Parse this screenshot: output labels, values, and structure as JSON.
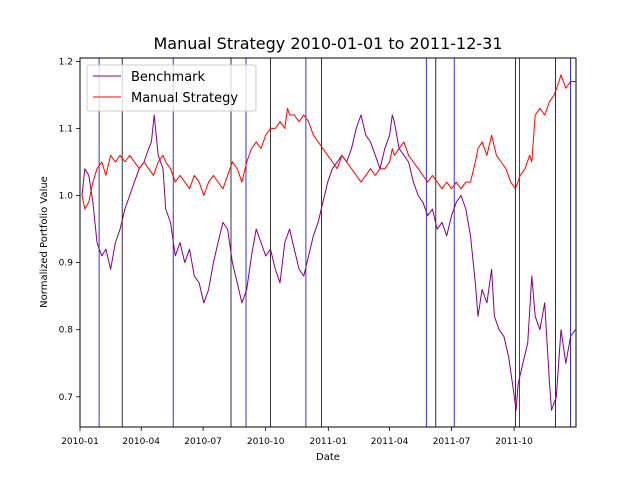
{
  "chart_data": {
    "type": "line",
    "title": "Manual Strategy 2010-01-01 to 2011-12-31",
    "xlabel": "Date",
    "ylabel": "Normalized Portfolio Value",
    "xlim": [
      "2010-01-01",
      "2011-12-31"
    ],
    "ylim": [
      0.655,
      1.205
    ],
    "grid": false,
    "legend_position": "top-left",
    "x_ticks": [
      {
        "date": "2010-01-01",
        "label": "2010-01"
      },
      {
        "date": "2010-04-01",
        "label": "2010-04"
      },
      {
        "date": "2010-07-01",
        "label": "2010-07"
      },
      {
        "date": "2010-10-01",
        "label": "2010-10"
      },
      {
        "date": "2011-01-01",
        "label": "2011-01"
      },
      {
        "date": "2011-04-01",
        "label": "2011-04"
      },
      {
        "date": "2011-07-01",
        "label": "2011-07"
      },
      {
        "date": "2011-10-01",
        "label": "2011-10"
      }
    ],
    "y_ticks": [
      {
        "value": 0.7,
        "label": "0.7"
      },
      {
        "value": 0.8,
        "label": "0.8"
      },
      {
        "value": 0.9,
        "label": "0.9"
      },
      {
        "value": 1.0,
        "label": "1.0"
      },
      {
        "value": 1.1,
        "label": "1.1"
      },
      {
        "value": 1.2,
        "label": "1.2"
      }
    ],
    "series": [
      {
        "name": "Benchmark",
        "color": "#800080",
        "points": [
          [
            "2010-01-04",
            1.0
          ],
          [
            "2010-01-08",
            1.04
          ],
          [
            "2010-01-14",
            1.03
          ],
          [
            "2010-01-20",
            0.99
          ],
          [
            "2010-01-26",
            0.93
          ],
          [
            "2010-02-02",
            0.91
          ],
          [
            "2010-02-08",
            0.92
          ],
          [
            "2010-02-15",
            0.89
          ],
          [
            "2010-02-22",
            0.93
          ],
          [
            "2010-03-01",
            0.95
          ],
          [
            "2010-03-08",
            0.98
          ],
          [
            "2010-03-15",
            1.0
          ],
          [
            "2010-03-22",
            1.02
          ],
          [
            "2010-03-29",
            1.04
          ],
          [
            "2010-04-05",
            1.05
          ],
          [
            "2010-04-12",
            1.07
          ],
          [
            "2010-04-16",
            1.08
          ],
          [
            "2010-04-20",
            1.12
          ],
          [
            "2010-04-26",
            1.06
          ],
          [
            "2010-05-03",
            1.04
          ],
          [
            "2010-05-07",
            0.98
          ],
          [
            "2010-05-14",
            0.96
          ],
          [
            "2010-05-21",
            0.91
          ],
          [
            "2010-05-28",
            0.93
          ],
          [
            "2010-06-04",
            0.9
          ],
          [
            "2010-06-11",
            0.92
          ],
          [
            "2010-06-18",
            0.88
          ],
          [
            "2010-06-25",
            0.87
          ],
          [
            "2010-07-02",
            0.84
          ],
          [
            "2010-07-09",
            0.86
          ],
          [
            "2010-07-16",
            0.9
          ],
          [
            "2010-07-23",
            0.93
          ],
          [
            "2010-07-30",
            0.96
          ],
          [
            "2010-08-06",
            0.95
          ],
          [
            "2010-08-13",
            0.9
          ],
          [
            "2010-08-20",
            0.87
          ],
          [
            "2010-08-27",
            0.84
          ],
          [
            "2010-09-03",
            0.86
          ],
          [
            "2010-09-10",
            0.91
          ],
          [
            "2010-09-17",
            0.95
          ],
          [
            "2010-09-24",
            0.93
          ],
          [
            "2010-10-01",
            0.91
          ],
          [
            "2010-10-08",
            0.92
          ],
          [
            "2010-10-15",
            0.89
          ],
          [
            "2010-10-22",
            0.87
          ],
          [
            "2010-10-29",
            0.93
          ],
          [
            "2010-11-05",
            0.95
          ],
          [
            "2010-11-12",
            0.92
          ],
          [
            "2010-11-19",
            0.89
          ],
          [
            "2010-11-26",
            0.88
          ],
          [
            "2010-12-03",
            0.91
          ],
          [
            "2010-12-10",
            0.94
          ],
          [
            "2010-12-17",
            0.96
          ],
          [
            "2010-12-24",
            0.99
          ],
          [
            "2010-12-31",
            1.02
          ],
          [
            "2011-01-07",
            1.04
          ],
          [
            "2011-01-14",
            1.05
          ],
          [
            "2011-01-21",
            1.06
          ],
          [
            "2011-01-28",
            1.05
          ],
          [
            "2011-02-04",
            1.07
          ],
          [
            "2011-02-11",
            1.1
          ],
          [
            "2011-02-18",
            1.12
          ],
          [
            "2011-02-25",
            1.09
          ],
          [
            "2011-03-04",
            1.08
          ],
          [
            "2011-03-11",
            1.06
          ],
          [
            "2011-03-18",
            1.04
          ],
          [
            "2011-03-25",
            1.07
          ],
          [
            "2011-04-01",
            1.09
          ],
          [
            "2011-04-05",
            1.12
          ],
          [
            "2011-04-08",
            1.11
          ],
          [
            "2011-04-15",
            1.07
          ],
          [
            "2011-04-22",
            1.06
          ],
          [
            "2011-04-29",
            1.05
          ],
          [
            "2011-05-06",
            1.02
          ],
          [
            "2011-05-13",
            1.0
          ],
          [
            "2011-05-20",
            0.99
          ],
          [
            "2011-05-27",
            0.97
          ],
          [
            "2011-06-03",
            0.98
          ],
          [
            "2011-06-10",
            0.95
          ],
          [
            "2011-06-17",
            0.96
          ],
          [
            "2011-06-24",
            0.94
          ],
          [
            "2011-07-01",
            0.97
          ],
          [
            "2011-07-08",
            0.99
          ],
          [
            "2011-07-15",
            1.0
          ],
          [
            "2011-07-22",
            0.98
          ],
          [
            "2011-07-29",
            0.94
          ],
          [
            "2011-08-05",
            0.87
          ],
          [
            "2011-08-09",
            0.82
          ],
          [
            "2011-08-15",
            0.86
          ],
          [
            "2011-08-22",
            0.84
          ],
          [
            "2011-08-29",
            0.89
          ],
          [
            "2011-09-02",
            0.82
          ],
          [
            "2011-09-09",
            0.8
          ],
          [
            "2011-09-16",
            0.79
          ],
          [
            "2011-09-23",
            0.76
          ],
          [
            "2011-09-30",
            0.71
          ],
          [
            "2011-10-04",
            0.68
          ],
          [
            "2011-10-07",
            0.72
          ],
          [
            "2011-10-14",
            0.75
          ],
          [
            "2011-10-21",
            0.78
          ],
          [
            "2011-10-27",
            0.88
          ],
          [
            "2011-11-01",
            0.82
          ],
          [
            "2011-11-08",
            0.8
          ],
          [
            "2011-11-15",
            0.84
          ],
          [
            "2011-11-22",
            0.72
          ],
          [
            "2011-11-25",
            0.68
          ],
          [
            "2011-12-02",
            0.7
          ],
          [
            "2011-12-09",
            0.8
          ],
          [
            "2011-12-16",
            0.75
          ],
          [
            "2011-12-23",
            0.79
          ],
          [
            "2011-12-30",
            0.8
          ]
        ]
      },
      {
        "name": "Manual Strategy",
        "color": "#ff0000",
        "points": [
          [
            "2010-01-04",
            1.0
          ],
          [
            "2010-01-08",
            0.98
          ],
          [
            "2010-01-14",
            0.99
          ],
          [
            "2010-01-20",
            1.02
          ],
          [
            "2010-01-26",
            1.04
          ],
          [
            "2010-02-02",
            1.05
          ],
          [
            "2010-02-08",
            1.03
          ],
          [
            "2010-02-15",
            1.06
          ],
          [
            "2010-02-22",
            1.05
          ],
          [
            "2010-03-01",
            1.06
          ],
          [
            "2010-03-08",
            1.05
          ],
          [
            "2010-03-15",
            1.06
          ],
          [
            "2010-03-22",
            1.05
          ],
          [
            "2010-03-29",
            1.04
          ],
          [
            "2010-04-05",
            1.05
          ],
          [
            "2010-04-12",
            1.04
          ],
          [
            "2010-04-19",
            1.03
          ],
          [
            "2010-04-26",
            1.05
          ],
          [
            "2010-05-03",
            1.06
          ],
          [
            "2010-05-07",
            1.05
          ],
          [
            "2010-05-14",
            1.04
          ],
          [
            "2010-05-21",
            1.02
          ],
          [
            "2010-05-28",
            1.03
          ],
          [
            "2010-06-04",
            1.02
          ],
          [
            "2010-06-11",
            1.01
          ],
          [
            "2010-06-18",
            1.03
          ],
          [
            "2010-06-25",
            1.02
          ],
          [
            "2010-07-02",
            1.0
          ],
          [
            "2010-07-09",
            1.02
          ],
          [
            "2010-07-16",
            1.03
          ],
          [
            "2010-07-23",
            1.02
          ],
          [
            "2010-07-30",
            1.01
          ],
          [
            "2010-08-06",
            1.03
          ],
          [
            "2010-08-13",
            1.05
          ],
          [
            "2010-08-20",
            1.04
          ],
          [
            "2010-08-27",
            1.02
          ],
          [
            "2010-09-03",
            1.05
          ],
          [
            "2010-09-10",
            1.07
          ],
          [
            "2010-09-17",
            1.08
          ],
          [
            "2010-09-24",
            1.07
          ],
          [
            "2010-10-01",
            1.09
          ],
          [
            "2010-10-08",
            1.1
          ],
          [
            "2010-10-15",
            1.1
          ],
          [
            "2010-10-22",
            1.11
          ],
          [
            "2010-10-29",
            1.1
          ],
          [
            "2010-11-02",
            1.13
          ],
          [
            "2010-11-05",
            1.12
          ],
          [
            "2010-11-12",
            1.12
          ],
          [
            "2010-11-19",
            1.11
          ],
          [
            "2010-11-26",
            1.12
          ],
          [
            "2010-12-03",
            1.11
          ],
          [
            "2010-12-10",
            1.09
          ],
          [
            "2010-12-17",
            1.08
          ],
          [
            "2010-12-24",
            1.07
          ],
          [
            "2010-12-31",
            1.06
          ],
          [
            "2011-01-07",
            1.05
          ],
          [
            "2011-01-14",
            1.04
          ],
          [
            "2011-01-21",
            1.06
          ],
          [
            "2011-01-28",
            1.05
          ],
          [
            "2011-02-04",
            1.04
          ],
          [
            "2011-02-11",
            1.03
          ],
          [
            "2011-02-18",
            1.02
          ],
          [
            "2011-02-25",
            1.03
          ],
          [
            "2011-03-04",
            1.04
          ],
          [
            "2011-03-11",
            1.03
          ],
          [
            "2011-03-18",
            1.04
          ],
          [
            "2011-03-25",
            1.04
          ],
          [
            "2011-04-01",
            1.05
          ],
          [
            "2011-04-05",
            1.07
          ],
          [
            "2011-04-08",
            1.06
          ],
          [
            "2011-04-15",
            1.07
          ],
          [
            "2011-04-22",
            1.08
          ],
          [
            "2011-04-29",
            1.06
          ],
          [
            "2011-05-06",
            1.05
          ],
          [
            "2011-05-13",
            1.04
          ],
          [
            "2011-05-20",
            1.03
          ],
          [
            "2011-05-27",
            1.02
          ],
          [
            "2011-06-03",
            1.03
          ],
          [
            "2011-06-10",
            1.02
          ],
          [
            "2011-06-17",
            1.01
          ],
          [
            "2011-06-24",
            1.02
          ],
          [
            "2011-07-01",
            1.01
          ],
          [
            "2011-07-08",
            1.02
          ],
          [
            "2011-07-15",
            1.01
          ],
          [
            "2011-07-22",
            1.02
          ],
          [
            "2011-07-29",
            1.02
          ],
          [
            "2011-08-05",
            1.05
          ],
          [
            "2011-08-09",
            1.07
          ],
          [
            "2011-08-15",
            1.08
          ],
          [
            "2011-08-22",
            1.06
          ],
          [
            "2011-08-29",
            1.09
          ],
          [
            "2011-09-05",
            1.06
          ],
          [
            "2011-09-12",
            1.05
          ],
          [
            "2011-09-19",
            1.04
          ],
          [
            "2011-09-26",
            1.02
          ],
          [
            "2011-10-03",
            1.01
          ],
          [
            "2011-10-10",
            1.03
          ],
          [
            "2011-10-17",
            1.04
          ],
          [
            "2011-10-24",
            1.06
          ],
          [
            "2011-10-27",
            1.05
          ],
          [
            "2011-11-01",
            1.12
          ],
          [
            "2011-11-08",
            1.13
          ],
          [
            "2011-11-15",
            1.12
          ],
          [
            "2011-11-22",
            1.14
          ],
          [
            "2011-11-29",
            1.15
          ],
          [
            "2011-12-06",
            1.17
          ],
          [
            "2011-12-09",
            1.18
          ],
          [
            "2011-12-16",
            1.16
          ],
          [
            "2011-12-23",
            1.17
          ],
          [
            "2011-12-30",
            1.17
          ]
        ]
      }
    ],
    "signal_lines": [
      {
        "date": "2010-01-29",
        "color": "#0000cc"
      },
      {
        "date": "2010-03-04",
        "color": "#000000"
      },
      {
        "date": "2010-05-18",
        "color": "#0000cc"
      },
      {
        "date": "2010-08-11",
        "color": "#000000"
      },
      {
        "date": "2010-09-02",
        "color": "#0000cc"
      },
      {
        "date": "2010-10-08",
        "color": "#000000"
      },
      {
        "date": "2010-11-29",
        "color": "#0000cc"
      },
      {
        "date": "2010-12-22",
        "color": "#000000"
      },
      {
        "date": "2011-05-25",
        "color": "#0000cc"
      },
      {
        "date": "2011-06-08",
        "color": "#000000"
      },
      {
        "date": "2011-07-05",
        "color": "#0000cc"
      },
      {
        "date": "2011-10-03",
        "color": "#000000"
      },
      {
        "date": "2011-10-09",
        "color": "#0000cc"
      },
      {
        "date": "2011-12-01",
        "color": "#000000"
      },
      {
        "date": "2011-12-23",
        "color": "#0000cc"
      }
    ]
  }
}
